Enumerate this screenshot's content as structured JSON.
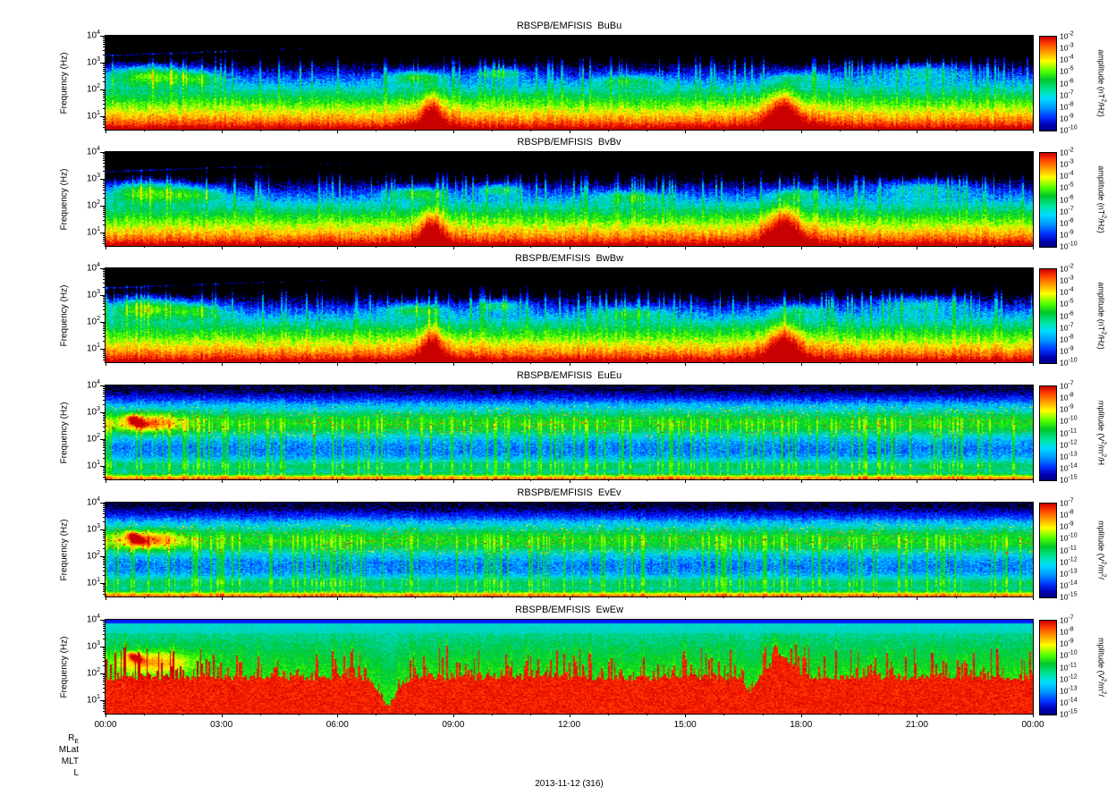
{
  "figure": {
    "date_label": "2013-11-12 (316)",
    "bottom_row_labels": [
      "R_E",
      "MLat",
      "MLT",
      "L"
    ],
    "x_tick_labels": [
      "00:00",
      "03:00",
      "06:00",
      "09:00",
      "12:00",
      "15:00",
      "18:00",
      "21:00",
      "00:00"
    ],
    "x_axis_note": "time of day (UT), 24 hours, major ticks every 3 hours",
    "colors": {
      "colormap": [
        "#000000",
        "#000080",
        "#0000ff",
        "#00dcff",
        "#00c828",
        "#3cff00",
        "#ffff00",
        "#ff8c00",
        "#ff1e00",
        "#c80000"
      ],
      "background": "#ffffff",
      "frame": "#000000"
    }
  },
  "chart_data": [
    {
      "type": "heatmap",
      "subtype": "spectrogram",
      "title": "RBSPB/EMFISIS  BuBu",
      "instrument": "RBSPB/EMFISIS",
      "component": "BuBu",
      "ylabel": "Frequency (Hz)",
      "y_scale": "log",
      "y_tick_labels": [
        "10^4",
        "10^3",
        "10^2",
        "10^1"
      ],
      "y_range_hz": [
        3,
        10000
      ],
      "x_range": [
        "00:00",
        "24:00"
      ],
      "colorbar_label": "amplitude (nT^2/Hz)",
      "colorbar_tick_labels": [
        "10^-2",
        "10^-3",
        "10^-4",
        "10^-5",
        "10^-6",
        "10^-7",
        "10^-8",
        "10^-9",
        "10^-10"
      ],
      "style": "magnetic",
      "description": "Magnetic spectral density BuBu: red/yellow broadband power below ~30 Hz all day; green emissions 100-1000 Hz, strongest 00:00-02:00; intense broadband bursts near 08:30 and 17:30 UT; mostly black above ~2 kHz with faint blue arcs."
    },
    {
      "type": "heatmap",
      "subtype": "spectrogram",
      "title": "RBSPB/EMFISIS  BvBv",
      "instrument": "RBSPB/EMFISIS",
      "component": "BvBv",
      "ylabel": "Frequency (Hz)",
      "y_scale": "log",
      "y_tick_labels": [
        "10^4",
        "10^3",
        "10^2",
        "10^1"
      ],
      "y_range_hz": [
        3,
        10000
      ],
      "x_range": [
        "00:00",
        "24:00"
      ],
      "colorbar_label": "amplitude (nT^2/Hz)",
      "colorbar_tick_labels": [
        "10^-2",
        "10^-3",
        "10^-4",
        "10^-5",
        "10^-6",
        "10^-7",
        "10^-8",
        "10^-9",
        "10^-10"
      ],
      "style": "magnetic",
      "description": "Magnetic spectral density BvBv: similar to BuBu with strong red plumes near 08:30 and 17:30 reaching higher frequency; green band 100-1000 Hz early in day."
    },
    {
      "type": "heatmap",
      "subtype": "spectrogram",
      "title": "RBSPB/EMFISIS  BwBw",
      "instrument": "RBSPB/EMFISIS",
      "component": "BwBw",
      "ylabel": "Frequency (Hz)",
      "y_scale": "log",
      "y_tick_labels": [
        "10^4",
        "10^3",
        "10^2",
        "10^1"
      ],
      "y_range_hz": [
        3,
        10000
      ],
      "x_range": [
        "00:00",
        "24:00"
      ],
      "colorbar_label": "amplitude (nT^2/Hz)",
      "colorbar_tick_labels": [
        "10^-2",
        "10^-3",
        "10^-4",
        "10^-5",
        "10^-6",
        "10^-7",
        "10^-8",
        "10^-9",
        "10^-10"
      ],
      "style": "magnetic",
      "description": "Magnetic spectral density BwBw: yellow-green low-frequency band, bright green blobs 100-1000 Hz near 00:30-02:00 and 09:00-10:00; weaker bursts at 08:30 and 17:30."
    },
    {
      "type": "heatmap",
      "subtype": "spectrogram",
      "title": "RBSPB/EMFISIS  EuEu",
      "instrument": "RBSPB/EMFISIS",
      "component": "EuEu",
      "ylabel": "Frequency (Hz)",
      "y_scale": "log",
      "y_tick_labels": [
        "10^4",
        "10^3",
        "10^2",
        "10^1"
      ],
      "y_range_hz": [
        3,
        10000
      ],
      "x_range": [
        "00:00",
        "24:00"
      ],
      "colorbar_label": "mplitude (V^2/m^2/H",
      "colorbar_tick_labels": [
        "10^-7",
        "10^-8",
        "10^-9",
        "10^-10",
        "10^-11",
        "10^-12",
        "10^-13",
        "10^-14",
        "10^-15"
      ],
      "style": "electric",
      "description": "Electric spectral density EuEu: blue background with dense vertical striations; green band 300 Hz-3 kHz with yellow speckles; thin yellow band at lowest frequencies; orange streak near 00:30; black above ~6 kHz."
    },
    {
      "type": "heatmap",
      "subtype": "spectrogram",
      "title": "RBSPB/EMFISIS  EvEv",
      "instrument": "RBSPB/EMFISIS",
      "component": "EvEv",
      "ylabel": "Frequency (Hz)",
      "y_scale": "log",
      "y_tick_labels": [
        "10^4",
        "10^3",
        "10^2",
        "10^1"
      ],
      "y_range_hz": [
        3,
        10000
      ],
      "x_range": [
        "00:00",
        "24:00"
      ],
      "colorbar_label": "mplitude (V^2/m^2/",
      "colorbar_tick_labels": [
        "10^-7",
        "10^-8",
        "10^-9",
        "10^-10",
        "10^-11",
        "10^-12",
        "10^-13",
        "10^-14",
        "10^-15"
      ],
      "style": "electric",
      "description": "Electric spectral density EvEv: very similar to EuEu; green emission band 300 Hz-3 kHz with embedded yellow dots; cyan vertical streaks through blue background; enhanced activity 16:00-18:00."
    },
    {
      "type": "heatmap",
      "subtype": "spectrogram",
      "title": "RBSPB/EMFISIS  EwEw",
      "instrument": "RBSPB/EMFISIS",
      "component": "EwEw",
      "ylabel": "Frequency (Hz)",
      "y_scale": "log",
      "y_tick_labels": [
        "10^4",
        "10^3",
        "10^2",
        "10^1"
      ],
      "y_range_hz": [
        3,
        10000
      ],
      "x_range": [
        "00:00",
        "24:00"
      ],
      "colorbar_label": "mplitude (V^2/m^2/",
      "colorbar_tick_labels": [
        "10^-7",
        "10^-8",
        "10^-9",
        "10^-10",
        "10^-11",
        "10^-12",
        "10^-13",
        "10^-14",
        "10^-15"
      ],
      "style": "electric_red",
      "description": "Electric spectral density EwEw: saturated red broadband power below ~200 Hz with a spiky upper edge across most of the day; notch near 08:15 and 17:00; green above the red region grading to a cyan band near 3-10 kHz; yellow blobs near 00:30-01:30."
    }
  ]
}
